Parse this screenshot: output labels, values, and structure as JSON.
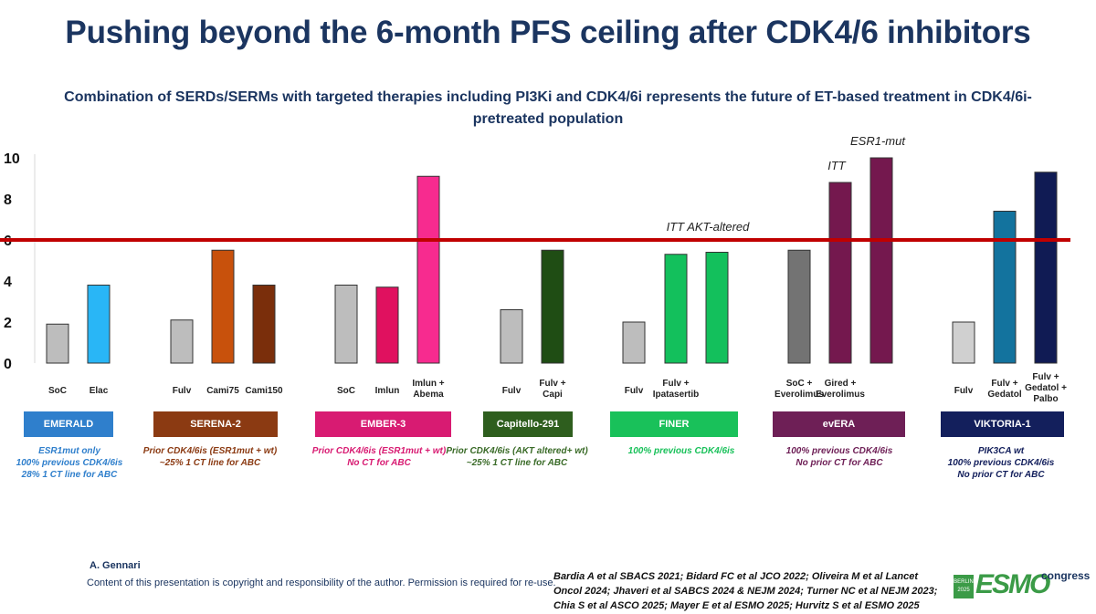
{
  "header": {
    "title": "Pushing beyond the 6-month PFS ceiling after CDK4/6 inhibitors",
    "subtitle": "Combination of SERDs/SERMs with targeted therapies including PI3Ki and CDK4/6i represents the future of ET-based treatment in CDK4/6i-pretreated population"
  },
  "chart_data": {
    "type": "bar",
    "ylim": [
      0,
      10
    ],
    "yticks": [
      "0",
      "2",
      "4",
      "6",
      "8",
      "10"
    ],
    "reference_line": {
      "value": 6,
      "color": "#c00000"
    },
    "groups": [
      {
        "trial": "EMERALD",
        "box_color": "#2f7fcc",
        "desc": "ESR1mut only\n100% previous CDK4/6is\n28% 1 CT line for ABC",
        "desc_color": "#2f7fcc",
        "bars": [
          {
            "label": "SoC",
            "value": 1.9,
            "color": "#bdbdbd"
          },
          {
            "label": "Elac",
            "value": 3.8,
            "color": "#29b6f6"
          }
        ]
      },
      {
        "trial": "SERENA-2",
        "box_color": "#8b3a12",
        "desc": "Prior CDK4/6is (ESR1mut + wt)\n~25% 1 CT line for ABC",
        "desc_color": "#8b3a12",
        "bars": [
          {
            "label": "Fulv",
            "value": 2.1,
            "color": "#bdbdbd"
          },
          {
            "label": "Cami75",
            "value": 5.5,
            "color": "#c8510c"
          },
          {
            "label": "Cami150",
            "value": 3.8,
            "color": "#7a2e0b"
          }
        ]
      },
      {
        "trial": "EMBER-3",
        "box_color": "#d81b72",
        "desc": "Prior CDK4/6is (ESR1mut + wt)\nNo CT for ABC",
        "desc_color": "#d81b72",
        "bars": [
          {
            "label": "SoC",
            "value": 3.8,
            "color": "#bdbdbd"
          },
          {
            "label": "Imlun",
            "value": 3.7,
            "color": "#e0115f"
          },
          {
            "label": "Imlun + Abema",
            "value": 9.1,
            "color": "#f72b8f"
          }
        ]
      },
      {
        "trial": "Capitello-291",
        "box_color": "#2e5e1e",
        "desc": "Prior CDK4/6is (AKT altered+ wt)\n~25% 1 CT line for ABC",
        "desc_color": "#3a6b28",
        "bars": [
          {
            "label": "Fulv",
            "value": 2.6,
            "color": "#bdbdbd"
          },
          {
            "label": "Fulv + Capi",
            "value": 5.5,
            "color": "#1f4d14"
          }
        ]
      },
      {
        "trial": "FINER",
        "box_color": "#19c15a",
        "desc": "100% previous CDK4/6is",
        "desc_color": "#19c15a",
        "annotation": "ITT  AKT-altered",
        "bars": [
          {
            "label": "Fulv",
            "value": 2.0,
            "color": "#bdbdbd"
          },
          {
            "label": "Fulv + Ipatasertib",
            "value": 5.3,
            "color": "#13c05c"
          },
          {
            "label": "",
            "value": 5.4,
            "color": "#13c05c"
          }
        ]
      },
      {
        "trial": "evERA",
        "box_color": "#6e1f56",
        "desc": "100% previous CDK4/6is\nNo prior CT for ABC",
        "desc_color": "#6e1f56",
        "bars": [
          {
            "label": "SoC + Everolimus",
            "value": 5.5,
            "color": "#737373"
          },
          {
            "label": "Gired + Everolimus",
            "value": 8.8,
            "color": "#74184e",
            "annotation": "ITT"
          },
          {
            "label": "",
            "value": 10.0,
            "color": "#74184e",
            "annotation": "ESR1-mut"
          }
        ]
      },
      {
        "trial": "VIKTORIA-1",
        "box_color": "#131f5c",
        "desc": "PIK3CA wt\n100% previous CDK4/6is\nNo prior CT for ABC",
        "desc_color": "#131f5c",
        "bars": [
          {
            "label": "Fulv",
            "value": 2.0,
            "color": "#d0d0d0"
          },
          {
            "label": "Fulv + Gedatol",
            "value": 7.4,
            "color": "#13739e"
          },
          {
            "label": "Fulv + Gedatol + Palbo",
            "value": 9.3,
            "color": "#101b54"
          }
        ]
      }
    ]
  },
  "footer": {
    "author": "A. Gennari",
    "copyright": "Content of this presentation is copyright and responsibility of the author. Permission is required for re-use.",
    "references": "Bardia A et al SBACS 2021; Bidard FC et al JCO 2022; Oliveira M et al Lancet Oncol 2024; Jhaveri et al SABCS 2024 & NEJM 2024; Turner NC et al NEJM 2023; Chia S et al ASCO 2025; Mayer E et al ESMO 2025; Hurvitz S et al ESMO 2025"
  },
  "logo": {
    "berlin_text": "BERLIN 2025",
    "brand": "ESMO",
    "congress": "congress",
    "color": "#3b9b47"
  }
}
